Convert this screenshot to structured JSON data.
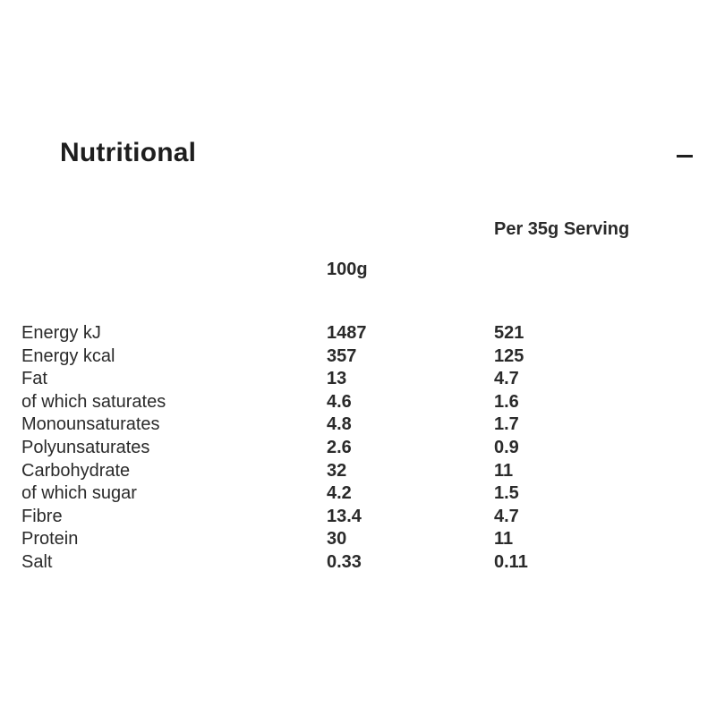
{
  "section": {
    "title": "Nutritional",
    "toggle_icon": "minus-icon"
  },
  "table": {
    "headers": {
      "per_100g": "100g",
      "per_serving": "Per 35g Serving"
    },
    "rows": [
      {
        "label": "Energy kJ",
        "per_100g": "1487",
        "per_serving": "521"
      },
      {
        "label": "Energy kcal",
        "per_100g": "357",
        "per_serving": "125"
      },
      {
        "label": "Fat",
        "per_100g": "13",
        "per_serving": "4.7"
      },
      {
        "label": "of which saturates",
        "per_100g": "4.6",
        "per_serving": "1.6"
      },
      {
        "label": "Monounsaturates",
        "per_100g": "4.8",
        "per_serving": "1.7"
      },
      {
        "label": "Polyunsaturates",
        "per_100g": "2.6",
        "per_serving": "0.9"
      },
      {
        "label": "Carbohydrate",
        "per_100g": "32",
        "per_serving": "11"
      },
      {
        "label": "of which sugar",
        "per_100g": "4.2",
        "per_serving": "1.5"
      },
      {
        "label": "Fibre",
        "per_100g": "13.4",
        "per_serving": "4.7"
      },
      {
        "label": "Protein",
        "per_100g": "30",
        "per_serving": "11"
      },
      {
        "label": "Salt",
        "per_100g": "0.33",
        "per_serving": "0.11"
      }
    ]
  }
}
